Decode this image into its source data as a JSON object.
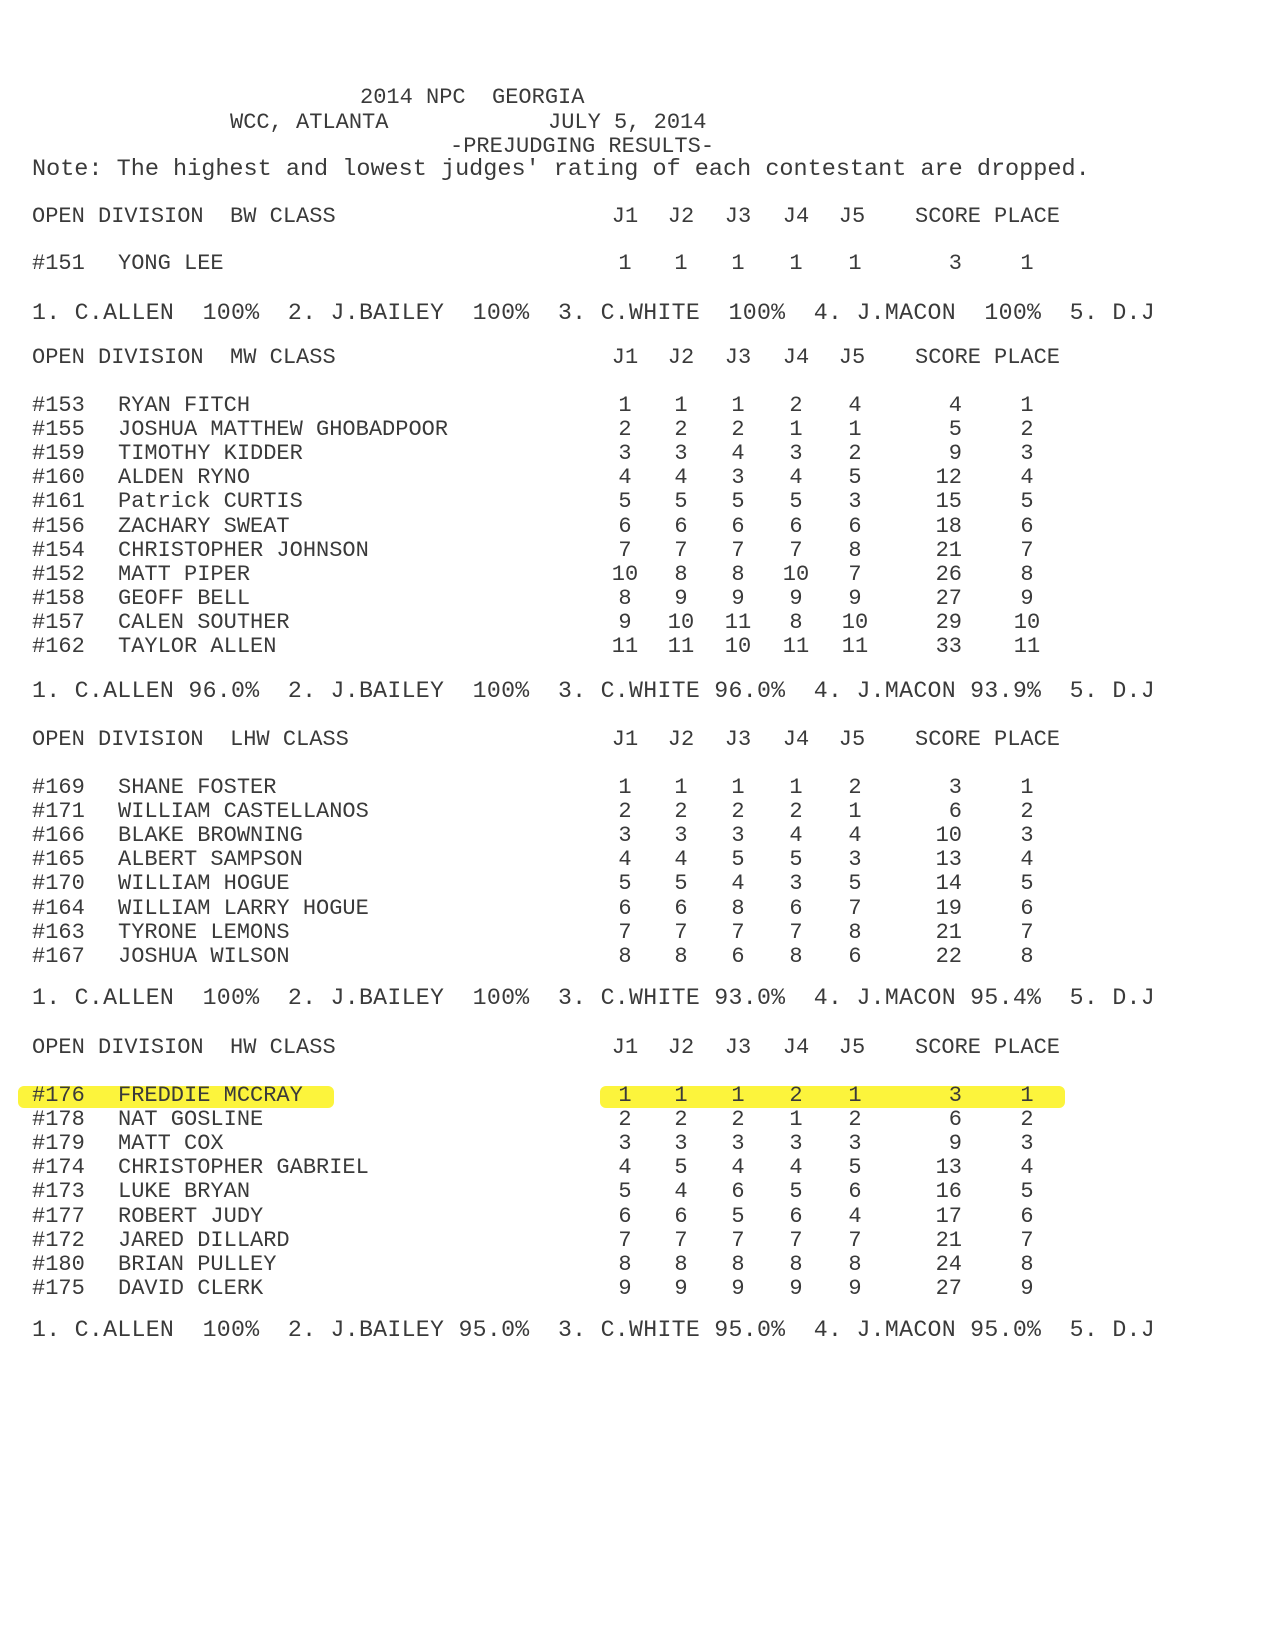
{
  "header": {
    "title": "2014 NPC  GEORGIA",
    "venue": "WCC, ATLANTA",
    "date": "JULY 5, 2014",
    "subtitle": "-PREJUDGING RESULTS-",
    "note": "Note: The highest and lowest judges' rating of each contestant are dropped."
  },
  "columns": [
    "J1",
    "J2",
    "J3",
    "J4",
    "J5",
    "SCORE",
    "PLACE"
  ],
  "highlight_color": "#fbf21a",
  "sections": [
    {
      "title": "OPEN DIVISION  BW CLASS",
      "rows": [
        {
          "num": "#151",
          "name": "YONG LEE",
          "j": [
            "1",
            "1",
            "1",
            "1",
            "1"
          ],
          "score": "3",
          "place": "1"
        }
      ],
      "judges_line": "1. C.ALLEN  100%  2. J.BAILEY  100%  3. C.WHITE  100%  4. J.MACON  100%  5. D.J"
    },
    {
      "title": "OPEN DIVISION  MW CLASS",
      "rows": [
        {
          "num": "#153",
          "name": "RYAN FITCH",
          "j": [
            "1",
            "1",
            "1",
            "2",
            "4"
          ],
          "score": "4",
          "place": "1"
        },
        {
          "num": "#155",
          "name": "JOSHUA MATTHEW GHOBADPOOR",
          "j": [
            "2",
            "2",
            "2",
            "1",
            "1"
          ],
          "score": "5",
          "place": "2"
        },
        {
          "num": "#159",
          "name": "TIMOTHY KIDDER",
          "j": [
            "3",
            "3",
            "4",
            "3",
            "2"
          ],
          "score": "9",
          "place": "3"
        },
        {
          "num": "#160",
          "name": "ALDEN RYNO",
          "j": [
            "4",
            "4",
            "3",
            "4",
            "5"
          ],
          "score": "12",
          "place": "4"
        },
        {
          "num": "#161",
          "name": "Patrick CURTIS",
          "j": [
            "5",
            "5",
            "5",
            "5",
            "3"
          ],
          "score": "15",
          "place": "5"
        },
        {
          "num": "#156",
          "name": "ZACHARY SWEAT",
          "j": [
            "6",
            "6",
            "6",
            "6",
            "6"
          ],
          "score": "18",
          "place": "6"
        },
        {
          "num": "#154",
          "name": "CHRISTOPHER JOHNSON",
          "j": [
            "7",
            "7",
            "7",
            "7",
            "8"
          ],
          "score": "21",
          "place": "7"
        },
        {
          "num": "#152",
          "name": "MATT PIPER",
          "j": [
            "10",
            "8",
            "8",
            "10",
            "7"
          ],
          "score": "26",
          "place": "8"
        },
        {
          "num": "#158",
          "name": "GEOFF BELL",
          "j": [
            "8",
            "9",
            "9",
            "9",
            "9"
          ],
          "score": "27",
          "place": "9"
        },
        {
          "num": "#157",
          "name": "CALEN SOUTHER",
          "j": [
            "9",
            "10",
            "11",
            "8",
            "10"
          ],
          "score": "29",
          "place": "10"
        },
        {
          "num": "#162",
          "name": "TAYLOR ALLEN",
          "j": [
            "11",
            "11",
            "10",
            "11",
            "11"
          ],
          "score": "33",
          "place": "11"
        }
      ],
      "judges_line": "1. C.ALLEN 96.0%  2. J.BAILEY  100%  3. C.WHITE 96.0%  4. J.MACON 93.9%  5. D.J"
    },
    {
      "title": "OPEN DIVISION  LHW CLASS",
      "rows": [
        {
          "num": "#169",
          "name": "SHANE FOSTER",
          "j": [
            "1",
            "1",
            "1",
            "1",
            "2"
          ],
          "score": "3",
          "place": "1"
        },
        {
          "num": "#171",
          "name": "WILLIAM CASTELLANOS",
          "j": [
            "2",
            "2",
            "2",
            "2",
            "1"
          ],
          "score": "6",
          "place": "2"
        },
        {
          "num": "#166",
          "name": "BLAKE BROWNING",
          "j": [
            "3",
            "3",
            "3",
            "4",
            "4"
          ],
          "score": "10",
          "place": "3"
        },
        {
          "num": "#165",
          "name": "ALBERT SAMPSON",
          "j": [
            "4",
            "4",
            "5",
            "5",
            "3"
          ],
          "score": "13",
          "place": "4"
        },
        {
          "num": "#170",
          "name": "WILLIAM HOGUE",
          "j": [
            "5",
            "5",
            "4",
            "3",
            "5"
          ],
          "score": "14",
          "place": "5"
        },
        {
          "num": "#164",
          "name": "WILLIAM LARRY HOGUE",
          "j": [
            "6",
            "6",
            "8",
            "6",
            "7"
          ],
          "score": "19",
          "place": "6"
        },
        {
          "num": "#163",
          "name": "TYRONE LEMONS",
          "j": [
            "7",
            "7",
            "7",
            "7",
            "8"
          ],
          "score": "21",
          "place": "7"
        },
        {
          "num": "#167",
          "name": "JOSHUA WILSON",
          "j": [
            "8",
            "8",
            "6",
            "8",
            "6"
          ],
          "score": "22",
          "place": "8"
        }
      ],
      "judges_line": "1. C.ALLEN  100%  2. J.BAILEY  100%  3. C.WHITE 93.0%  4. J.MACON 95.4%  5. D.J"
    },
    {
      "title": "OPEN DIVISION  HW CLASS",
      "rows": [
        {
          "num": "#176",
          "name": "FREDDIE MCCRAY",
          "j": [
            "1",
            "1",
            "1",
            "2",
            "1"
          ],
          "score": "3",
          "place": "1",
          "highlighted": true
        },
        {
          "num": "#178",
          "name": "NAT GOSLINE",
          "j": [
            "2",
            "2",
            "2",
            "1",
            "2"
          ],
          "score": "6",
          "place": "2"
        },
        {
          "num": "#179",
          "name": "MATT COX",
          "j": [
            "3",
            "3",
            "3",
            "3",
            "3"
          ],
          "score": "9",
          "place": "3"
        },
        {
          "num": "#174",
          "name": "CHRISTOPHER GABRIEL",
          "j": [
            "4",
            "5",
            "4",
            "4",
            "5"
          ],
          "score": "13",
          "place": "4"
        },
        {
          "num": "#173",
          "name": "LUKE BRYAN",
          "j": [
            "5",
            "4",
            "6",
            "5",
            "6"
          ],
          "score": "16",
          "place": "5"
        },
        {
          "num": "#177",
          "name": "ROBERT JUDY",
          "j": [
            "6",
            "6",
            "5",
            "6",
            "4"
          ],
          "score": "17",
          "place": "6"
        },
        {
          "num": "#172",
          "name": "JARED DILLARD",
          "j": [
            "7",
            "7",
            "7",
            "7",
            "7"
          ],
          "score": "21",
          "place": "7"
        },
        {
          "num": "#180",
          "name": "BRIAN PULLEY",
          "j": [
            "8",
            "8",
            "8",
            "8",
            "8"
          ],
          "score": "24",
          "place": "8"
        },
        {
          "num": "#175",
          "name": "DAVID CLERK",
          "j": [
            "9",
            "9",
            "9",
            "9",
            "9"
          ],
          "score": "27",
          "place": "9"
        }
      ],
      "judges_line": "1. C.ALLEN  100%  2. J.BAILEY 95.0%  3. C.WHITE 95.0%  4. J.MACON 95.0%  5. D.J"
    }
  ]
}
